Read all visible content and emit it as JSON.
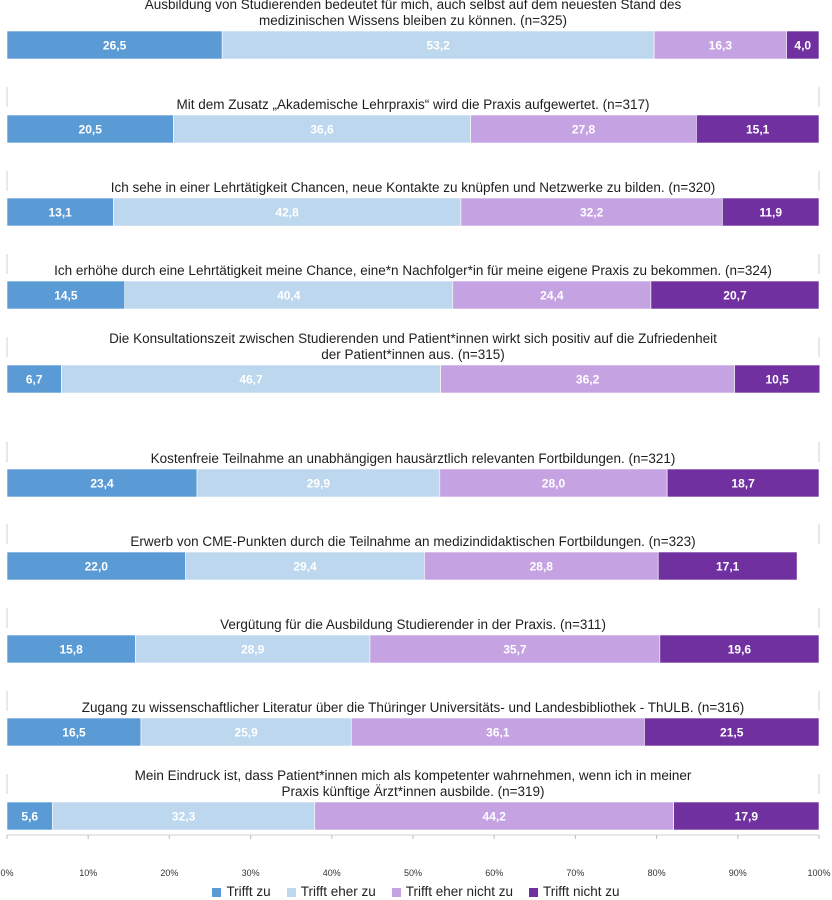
{
  "chart_data": {
    "type": "bar",
    "orientation": "horizontal-stacked-100",
    "xlim": [
      0,
      100
    ],
    "ticks": [
      "0%",
      "10%",
      "20%",
      "30%",
      "40%",
      "50%",
      "60%",
      "70%",
      "80%",
      "90%",
      "100%"
    ],
    "legend_position": "bottom",
    "series": [
      {
        "name": "Trifft zu",
        "color": "#5b9bd5"
      },
      {
        "name": "Trifft eher zu",
        "color": "#bdd7ee"
      },
      {
        "name": "Trifft eher nicht zu",
        "color": "#c5a3e3"
      },
      {
        "name": "Trifft nicht zu",
        "color": "#7030a0"
      }
    ],
    "items": [
      {
        "label": [
          "Ausbildung von Studierenden bedeutet für mich, auch selbst auf dem neuesten Stand des",
          "medizinischen Wissens bleiben zu können. (n=325)"
        ],
        "values": [
          "26,5",
          "53,2",
          "16,3",
          "4,0"
        ]
      },
      {
        "label": [
          "Mit dem Zusatz „Akademische Lehrpraxis“ wird die Praxis aufgewertet. (n=317)"
        ],
        "values": [
          "20,5",
          "36,6",
          "27,8",
          "15,1"
        ]
      },
      {
        "label": [
          "Ich sehe in einer Lehrtätigkeit Chancen, neue Kontakte zu knüpfen und Netzwerke zu bilden. (n=320)"
        ],
        "values": [
          "13,1",
          "42,8",
          "32,2",
          "11,9"
        ]
      },
      {
        "label": [
          "Ich erhöhe durch eine Lehrtätigkeit meine Chance, eine*n Nachfolger*in für meine eigene Praxis zu bekommen. (n=324)"
        ],
        "values": [
          "14,5",
          "40,4",
          "24,4",
          "20,7"
        ]
      },
      {
        "label": [
          "Die Konsultationszeit zwischen Studierenden und Patient*innen wirkt sich positiv auf die Zufriedenheit",
          "der Patient*innen aus. (n=315)"
        ],
        "values": [
          "6,7",
          "46,7",
          "36,2",
          "10,5"
        ]
      },
      {
        "label": [
          "Kostenfreie Teilnahme an unabhängigen hausärztlich relevanten Fortbildungen. (n=321)"
        ],
        "values": [
          "23,4",
          "29,9",
          "28,0",
          "18,7"
        ]
      },
      {
        "label": [
          "Erwerb von CME-Punkten durch die Teilnahme an medizindidaktischen Fortbildungen. (n=323)"
        ],
        "values": [
          "22,0",
          "29,4",
          "28,8",
          "17,1"
        ]
      },
      {
        "label": [
          "Vergütung für die Ausbildung Studierender in der Praxis. (n=311)"
        ],
        "values": [
          "15,8",
          "28,9",
          "35,7",
          "19,6"
        ]
      },
      {
        "label": [
          "Zugang zu wissenschaftlicher Literatur über die Thüringer Universitäts- und Landesbibliothek - ThULB. (n=316)"
        ],
        "values": [
          "16,5",
          "25,9",
          "36,1",
          "21,5"
        ]
      },
      {
        "label": [
          "Mein Eindruck ist, dass Patient*innen mich als kompetenter wahrnehmen, wenn ich in meiner",
          "Praxis künftige Ärzt*innen ausbilde. (n=319)"
        ],
        "values": [
          "5,6",
          "32,3",
          "44,2",
          "17,9"
        ]
      }
    ]
  }
}
